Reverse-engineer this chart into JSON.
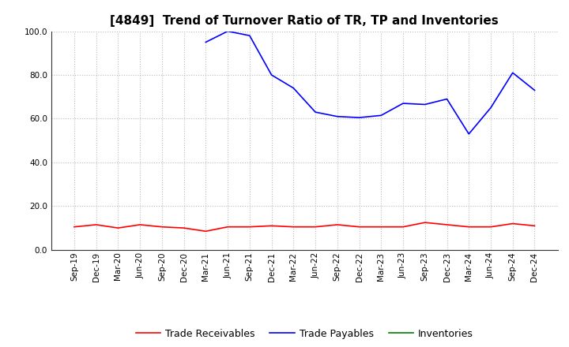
{
  "title": "[4849]  Trend of Turnover Ratio of TR, TP and Inventories",
  "xlabels": [
    "Sep-19",
    "Dec-19",
    "Mar-20",
    "Jun-20",
    "Sep-20",
    "Dec-20",
    "Mar-21",
    "Jun-21",
    "Sep-21",
    "Dec-21",
    "Mar-22",
    "Jun-22",
    "Sep-22",
    "Dec-22",
    "Mar-23",
    "Jun-23",
    "Sep-23",
    "Dec-23",
    "Mar-24",
    "Jun-24",
    "Sep-24",
    "Dec-24"
  ],
  "trade_receivables": [
    10.5,
    11.5,
    10.0,
    11.5,
    10.5,
    10.0,
    8.5,
    10.5,
    10.5,
    11.0,
    10.5,
    10.5,
    11.5,
    10.5,
    10.5,
    10.5,
    12.5,
    11.5,
    10.5,
    10.5,
    12.0,
    11.0
  ],
  "trade_payables": [
    null,
    null,
    null,
    null,
    null,
    null,
    95.0,
    100.0,
    98.0,
    80.0,
    74.0,
    63.0,
    61.0,
    60.5,
    61.5,
    67.0,
    66.5,
    69.0,
    53.0,
    65.0,
    81.0,
    73.0
  ],
  "inventories": [
    null,
    null,
    null,
    null,
    null,
    null,
    null,
    null,
    null,
    null,
    null,
    null,
    null,
    null,
    null,
    null,
    null,
    null,
    null,
    null,
    null,
    null
  ],
  "ylim": [
    0.0,
    100.0
  ],
  "yticks": [
    0.0,
    20.0,
    40.0,
    60.0,
    80.0,
    100.0
  ],
  "tr_color": "#ff0000",
  "tp_color": "#0000ff",
  "inv_color": "#008000",
  "bg_color": "#ffffff",
  "grid_color": "#bbbbbb",
  "title_fontsize": 11,
  "tick_fontsize": 7.5,
  "legend_fontsize": 9,
  "legend_labels": [
    "Trade Receivables",
    "Trade Payables",
    "Inventories"
  ]
}
